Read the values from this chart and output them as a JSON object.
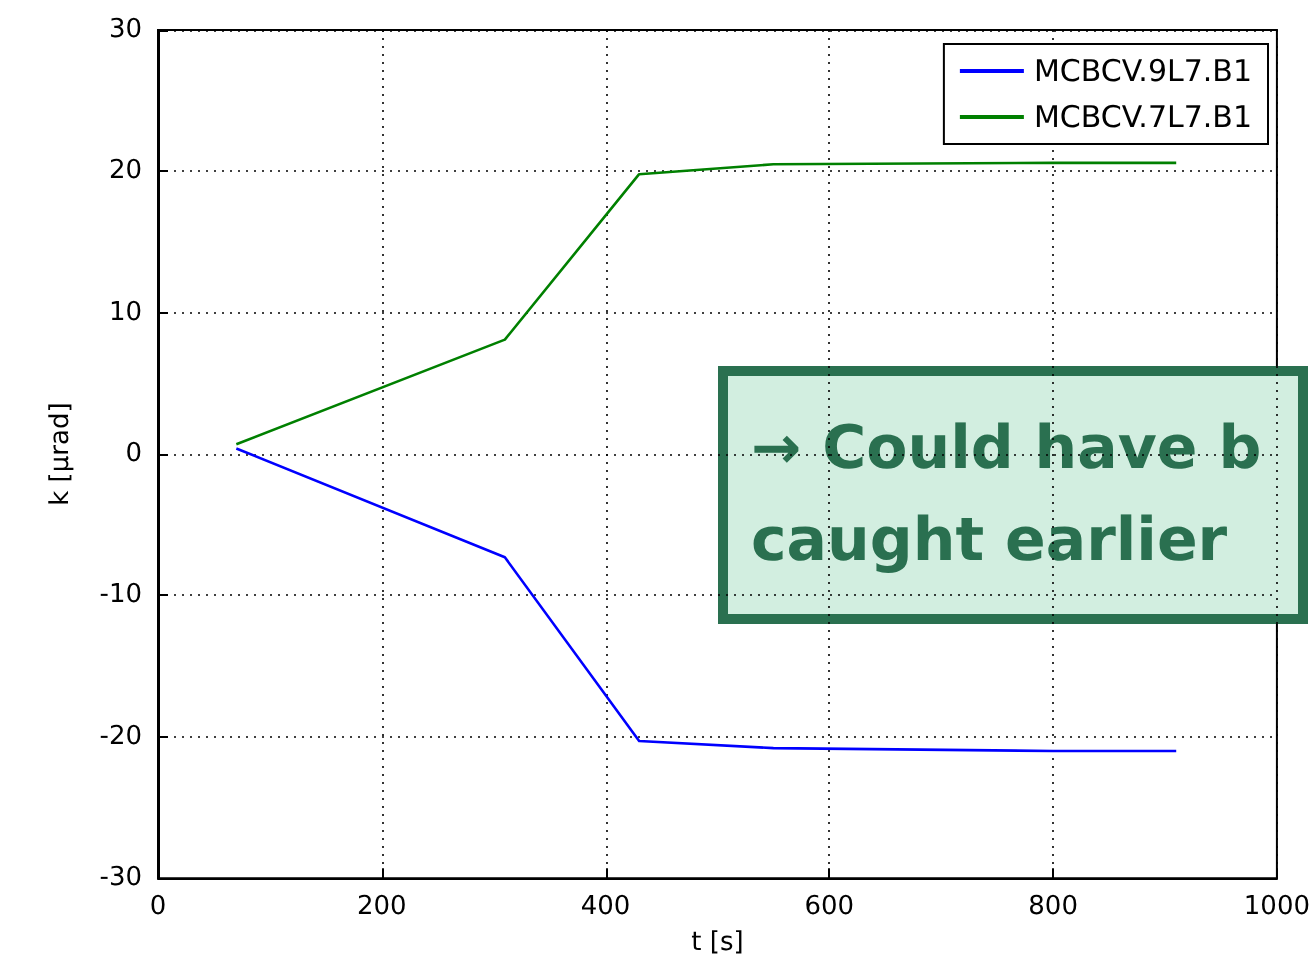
{
  "chart_data": {
    "type": "line",
    "xlabel": "t [s]",
    "ylabel": "k [μrad]",
    "xlim": [
      0,
      1000
    ],
    "xticks": [
      0,
      200,
      400,
      600,
      800,
      1000
    ],
    "ylim": [
      -30,
      30
    ],
    "yticks": [
      -30,
      -20,
      -10,
      0,
      10,
      20,
      30
    ],
    "grid": true,
    "legend": "top right",
    "series": [
      {
        "name": "MCBCV.9L7.B1",
        "color": "#0000ff",
        "x": [
          70,
          310,
          430,
          550,
          800,
          910
        ],
        "values": [
          0.4,
          -7.3,
          -20.3,
          -20.8,
          -21.0,
          -21.0
        ]
      },
      {
        "name": "MCBCV.7L7.B1",
        "color": "#008000",
        "x": [
          70,
          310,
          430,
          550,
          800,
          910
        ],
        "values": [
          0.7,
          8.1,
          19.8,
          20.5,
          20.6,
          20.6
        ]
      }
    ],
    "annotations": [
      "→ Could have b\ncaught earlier"
    ]
  }
}
